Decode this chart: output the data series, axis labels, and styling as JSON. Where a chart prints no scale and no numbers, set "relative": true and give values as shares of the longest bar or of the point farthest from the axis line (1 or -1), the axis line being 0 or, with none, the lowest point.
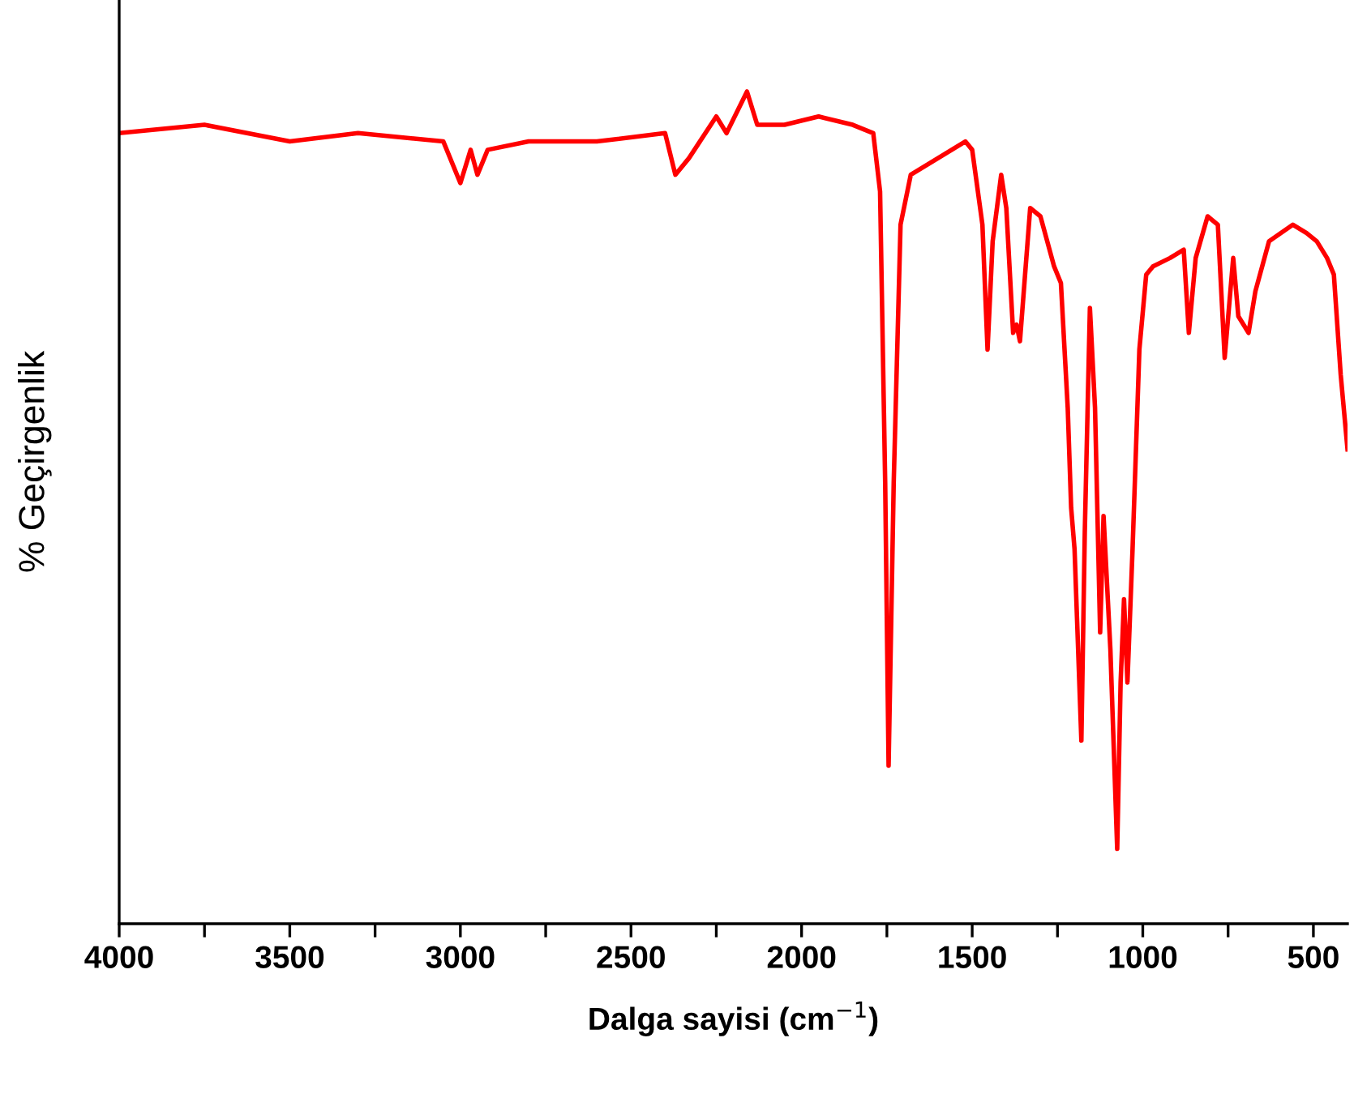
{
  "chart_data": {
    "type": "line",
    "relative": true,
    "xlabel": "Dalga sayisi (cm$^{−1}$)",
    "ylabel": "% Geçirgenlik",
    "xlim": [
      4000,
      400
    ],
    "xticks": [
      4000,
      {
        "value": 3750,
        "label": null
      },
      3500,
      {
        "value": 3250,
        "label": null
      },
      3000,
      {
        "value": 2750,
        "label": null
      },
      2500,
      {
        "value": 2250,
        "label": null
      },
      2000,
      {
        "value": 1750,
        "label": null
      },
      1500,
      {
        "value": 1250,
        "label": null
      },
      1000,
      {
        "value": 750,
        "label": null
      },
      500
    ],
    "tick_labels": "x",
    "grid": false,
    "legend": false,
    "marker": "none",
    "line_style": "solid",
    "series": [
      {
        "color": "#ff0000",
        "x": [
          4000,
          3750,
          3500,
          3300,
          3050,
          3000,
          2970,
          2950,
          2920,
          2800,
          2600,
          2400,
          2370,
          2330,
          2250,
          2220,
          2160,
          2130,
          2050,
          1950,
          1850,
          1790,
          1770,
          1755,
          1745,
          1730,
          1710,
          1680,
          1600,
          1520,
          1500,
          1470,
          1455,
          1440,
          1415,
          1400,
          1380,
          1370,
          1360,
          1330,
          1300,
          1260,
          1240,
          1220,
          1210,
          1200,
          1180,
          1170,
          1155,
          1140,
          1125,
          1115,
          1095,
          1075,
          1065,
          1055,
          1045,
          1030,
          1010,
          990,
          970,
          920,
          880,
          865,
          845,
          810,
          780,
          760,
          735,
          720,
          690,
          670,
          630,
          560,
          520,
          490,
          460,
          440,
          420,
          400
        ],
        "values": [
          0.95,
          0.96,
          0.94,
          0.95,
          0.94,
          0.89,
          0.93,
          0.9,
          0.93,
          0.94,
          0.94,
          0.95,
          0.9,
          0.92,
          0.97,
          0.95,
          1.0,
          0.96,
          0.96,
          0.97,
          0.96,
          0.95,
          0.88,
          0.53,
          0.19,
          0.53,
          0.84,
          0.9,
          0.92,
          0.94,
          0.93,
          0.84,
          0.69,
          0.82,
          0.9,
          0.86,
          0.71,
          0.72,
          0.7,
          0.86,
          0.85,
          0.79,
          0.77,
          0.62,
          0.5,
          0.45,
          0.22,
          0.47,
          0.74,
          0.62,
          0.35,
          0.49,
          0.33,
          0.09,
          0.29,
          0.39,
          0.29,
          0.45,
          0.69,
          0.78,
          0.79,
          0.8,
          0.81,
          0.71,
          0.8,
          0.85,
          0.84,
          0.68,
          0.8,
          0.73,
          0.71,
          0.76,
          0.82,
          0.84,
          0.83,
          0.82,
          0.8,
          0.78,
          0.66,
          0.57
        ]
      }
    ]
  }
}
